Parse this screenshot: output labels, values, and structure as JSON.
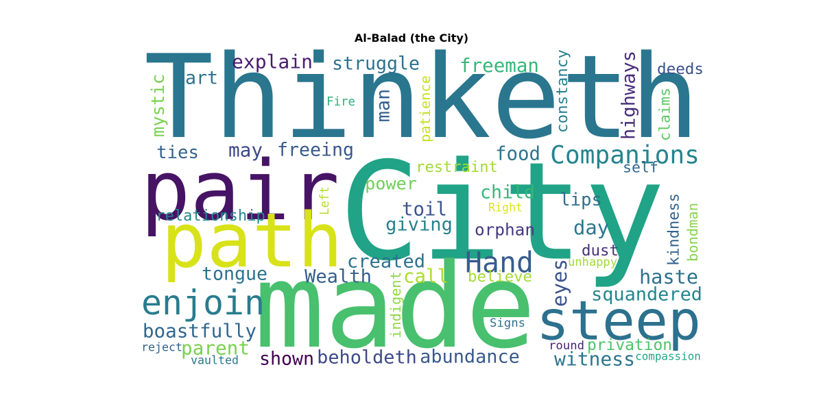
{
  "chart_data": {
    "type": "wordcloud",
    "title": "Al-Balad (the City)",
    "palette": "viridis",
    "words": [
      {
        "text": "City",
        "color": "#20a386"
      },
      {
        "text": "Thinketh",
        "color": "#2a768e"
      },
      {
        "text": "made",
        "color": "#48c06e"
      },
      {
        "text": "pair",
        "color": "#471365"
      },
      {
        "text": "path",
        "color": "#d8e219"
      },
      {
        "text": "steep",
        "color": "#2c718e"
      },
      {
        "text": "enjoin",
        "color": "#287c8e"
      },
      {
        "text": "Companions",
        "color": "#25848e"
      },
      {
        "text": "Hand",
        "color": "#365c8d"
      },
      {
        "text": "explain",
        "color": "#481a6c"
      },
      {
        "text": "struggle",
        "color": "#2d718e"
      },
      {
        "text": "freeman",
        "color": "#35b779"
      },
      {
        "text": "art",
        "color": "#2c728e"
      },
      {
        "text": "deeds",
        "color": "#3b518b"
      },
      {
        "text": "Fire",
        "color": "#2db27d"
      },
      {
        "text": "man",
        "color": "#34608d"
      },
      {
        "text": "patience",
        "color": "#c8e020"
      },
      {
        "text": "constancy",
        "color": "#277f8e"
      },
      {
        "text": "highways",
        "color": "#472c7a"
      },
      {
        "text": "claims",
        "color": "#5ec962"
      },
      {
        "text": "mystic",
        "color": "#7ad151"
      },
      {
        "text": "ties",
        "color": "#33638d"
      },
      {
        "text": "may",
        "color": "#3e4989"
      },
      {
        "text": "freeing",
        "color": "#38598c"
      },
      {
        "text": "food",
        "color": "#2c738e"
      },
      {
        "text": "restraint",
        "color": "#a2da37"
      },
      {
        "text": "self",
        "color": "#31678e"
      },
      {
        "text": "power",
        "color": "#70cf57"
      },
      {
        "text": "child",
        "color": "#35b779"
      },
      {
        "text": "lips",
        "color": "#2e6e8e"
      },
      {
        "text": "bondman",
        "color": "#86d549"
      },
      {
        "text": "Left",
        "color": "#b5de2b"
      },
      {
        "text": "Right",
        "color": "#dde318"
      },
      {
        "text": "relationship",
        "color": "#24868e"
      },
      {
        "text": "toil",
        "color": "#3a548c"
      },
      {
        "text": "giving",
        "color": "#26828e"
      },
      {
        "text": "day",
        "color": "#2a778e"
      },
      {
        "text": "kindness",
        "color": "#33638d"
      },
      {
        "text": "orphan",
        "color": "#443983"
      },
      {
        "text": "dust",
        "color": "#46327e"
      },
      {
        "text": "created",
        "color": "#2c728e"
      },
      {
        "text": "unhappy",
        "color": "#a2da37"
      },
      {
        "text": "tongue",
        "color": "#2c728e"
      },
      {
        "text": "Wealth",
        "color": "#365d8d"
      },
      {
        "text": "call",
        "color": "#addc30"
      },
      {
        "text": "believe",
        "color": "#a5db36"
      },
      {
        "text": "eyes",
        "color": "#3b528b"
      },
      {
        "text": "haste",
        "color": "#2d708e"
      },
      {
        "text": "indigent",
        "color": "#90d743"
      },
      {
        "text": "squandered",
        "color": "#24868e"
      },
      {
        "text": "boastfully",
        "color": "#31668e"
      },
      {
        "text": "Signs",
        "color": "#2c728e"
      },
      {
        "text": "parent",
        "color": "#7ad151"
      },
      {
        "text": "privation",
        "color": "#4ec36b"
      },
      {
        "text": "reject",
        "color": "#33638d"
      },
      {
        "text": "round",
        "color": "#482374"
      },
      {
        "text": "shown",
        "color": "#440154"
      },
      {
        "text": "beholdeth",
        "color": "#3e4989"
      },
      {
        "text": "abundance",
        "color": "#38598c"
      },
      {
        "text": "witness",
        "color": "#2b758e"
      },
      {
        "text": "vaulted",
        "color": "#2a788e"
      },
      {
        "text": "compassion",
        "color": "#21a685"
      }
    ]
  }
}
